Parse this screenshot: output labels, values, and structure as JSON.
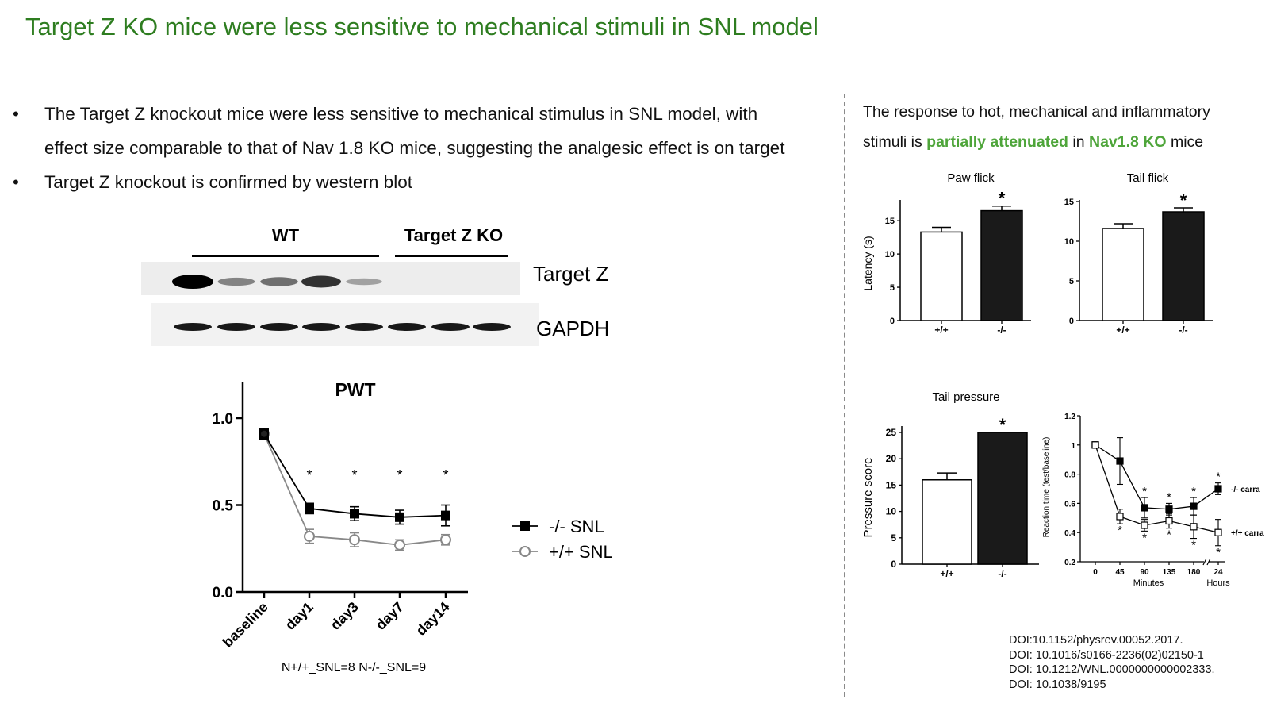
{
  "title": "Target Z KO mice were less sensitive to mechanical stimuli in SNL model",
  "bullets": [
    {
      "line1": "The Target Z knockout mice were less sensitive to mechanical stimulus in SNL model, with",
      "line2": "effect size comparable to that of Nav 1.8 KO mice, suggesting the analgesic effect is on target"
    },
    {
      "line1": "Target Z knockout is confirmed by western blot"
    }
  ],
  "bullet_symbol": "•",
  "western_blot": {
    "group_wt": "WT",
    "group_ko": "Target Z KO",
    "band1_label": "Target Z",
    "band2_label": "GAPDH",
    "lanes": 8,
    "target_z_intensity": [
      1.0,
      0.35,
      0.45,
      0.75,
      0.2,
      0,
      0,
      0
    ],
    "gapdh_intensity": [
      1,
      1,
      1,
      1,
      1,
      1,
      1,
      1
    ]
  },
  "right_text": {
    "part1": "The response to hot, mechanical and inflammatory",
    "part2": "stimuli is ",
    "hl1": "partially attenuated",
    "part3": " in ",
    "hl2": "Nav1.8 KO",
    "part4": " mice"
  },
  "doi": [
    "DOI:10.1152/physrev.00052.2017.",
    "DOI: 10.1016/s0166-2236(02)02150-1",
    "DOI: 10.1212/WNL.0000000000002333.",
    "DOI: 10.1038/9195"
  ],
  "chart_data": [
    {
      "type": "line",
      "title": "PWT",
      "categories": [
        "baseline",
        "day1",
        "day3",
        "day7",
        "day14"
      ],
      "ylim": [
        0,
        1.0
      ],
      "yticks": [
        "0.0",
        "0.5",
        "1.0"
      ],
      "series": [
        {
          "name": "-/- SNL",
          "values": [
            0.91,
            0.48,
            0.45,
            0.43,
            0.44
          ],
          "err": [
            0.03,
            0.03,
            0.04,
            0.04,
            0.06
          ],
          "color": "#000000",
          "marker": "square-filled"
        },
        {
          "name": "+/+ SNL",
          "values": [
            0.91,
            0.32,
            0.3,
            0.27,
            0.3
          ],
          "err": [
            0.03,
            0.04,
            0.04,
            0.03,
            0.03
          ],
          "color": "#888888",
          "marker": "circle-open"
        }
      ],
      "significance": [
        "",
        "*",
        "*",
        "*",
        "*"
      ],
      "note": "N+/+_SNL=8 N-/-_SNL=9"
    },
    {
      "type": "bar",
      "title": "Paw flick",
      "ylabel": "Latency (s)",
      "categories": [
        "+/+",
        "-/-"
      ],
      "values": [
        13.3,
        16.5
      ],
      "err": [
        0.7,
        0.7
      ],
      "ylim": [
        0,
        18
      ],
      "yticks": [
        0,
        5,
        10,
        15
      ],
      "significance": [
        "",
        "*"
      ],
      "colors": [
        "#ffffff",
        "#1a1a1a"
      ]
    },
    {
      "type": "bar",
      "title": "Tail flick",
      "categories": [
        "+/+",
        "-/-"
      ],
      "values": [
        11.6,
        13.7
      ],
      "err": [
        0.6,
        0.5
      ],
      "ylim": [
        0,
        15
      ],
      "yticks": [
        0,
        5,
        10,
        15
      ],
      "significance": [
        "",
        "*"
      ],
      "colors": [
        "#ffffff",
        "#1a1a1a"
      ]
    },
    {
      "type": "bar",
      "title": "Tail pressure",
      "ylabel": "Pressure score",
      "categories": [
        "+/+",
        "-/-"
      ],
      "values": [
        16.0,
        25.0
      ],
      "err": [
        1.3,
        0
      ],
      "ylim": [
        0,
        25
      ],
      "yticks": [
        0,
        5,
        10,
        15,
        20,
        25
      ],
      "significance": [
        "",
        "*"
      ],
      "colors": [
        "#ffffff",
        "#1a1a1a"
      ]
    },
    {
      "type": "line",
      "ylabel": "Reaction time (test/baseline)",
      "categories": [
        "0",
        "45",
        "90",
        "135",
        "180",
        "24"
      ],
      "xlabel_minutes": "Minutes",
      "xlabel_hours": "Hours",
      "ylim": [
        0.2,
        1.2
      ],
      "yticks": [
        "0.2",
        "0.4",
        "0.6",
        "0.8",
        "1",
        "1.2"
      ],
      "series": [
        {
          "name": "-/- carra",
          "values": [
            1.0,
            0.89,
            0.57,
            0.56,
            0.58,
            0.7
          ],
          "err": [
            0,
            0.16,
            0.07,
            0.04,
            0.06,
            0.04
          ],
          "marker": "square-filled",
          "significance": [
            "",
            "",
            "*",
            "*",
            "*",
            "*"
          ]
        },
        {
          "name": "+/+ carra",
          "values": [
            1.0,
            0.51,
            0.45,
            0.48,
            0.44,
            0.4
          ],
          "err": [
            0,
            0.05,
            0.04,
            0.05,
            0.08,
            0.09
          ],
          "marker": "square-open",
          "significance": [
            "",
            "*",
            "*",
            "*",
            "*",
            "*"
          ]
        }
      ]
    }
  ]
}
